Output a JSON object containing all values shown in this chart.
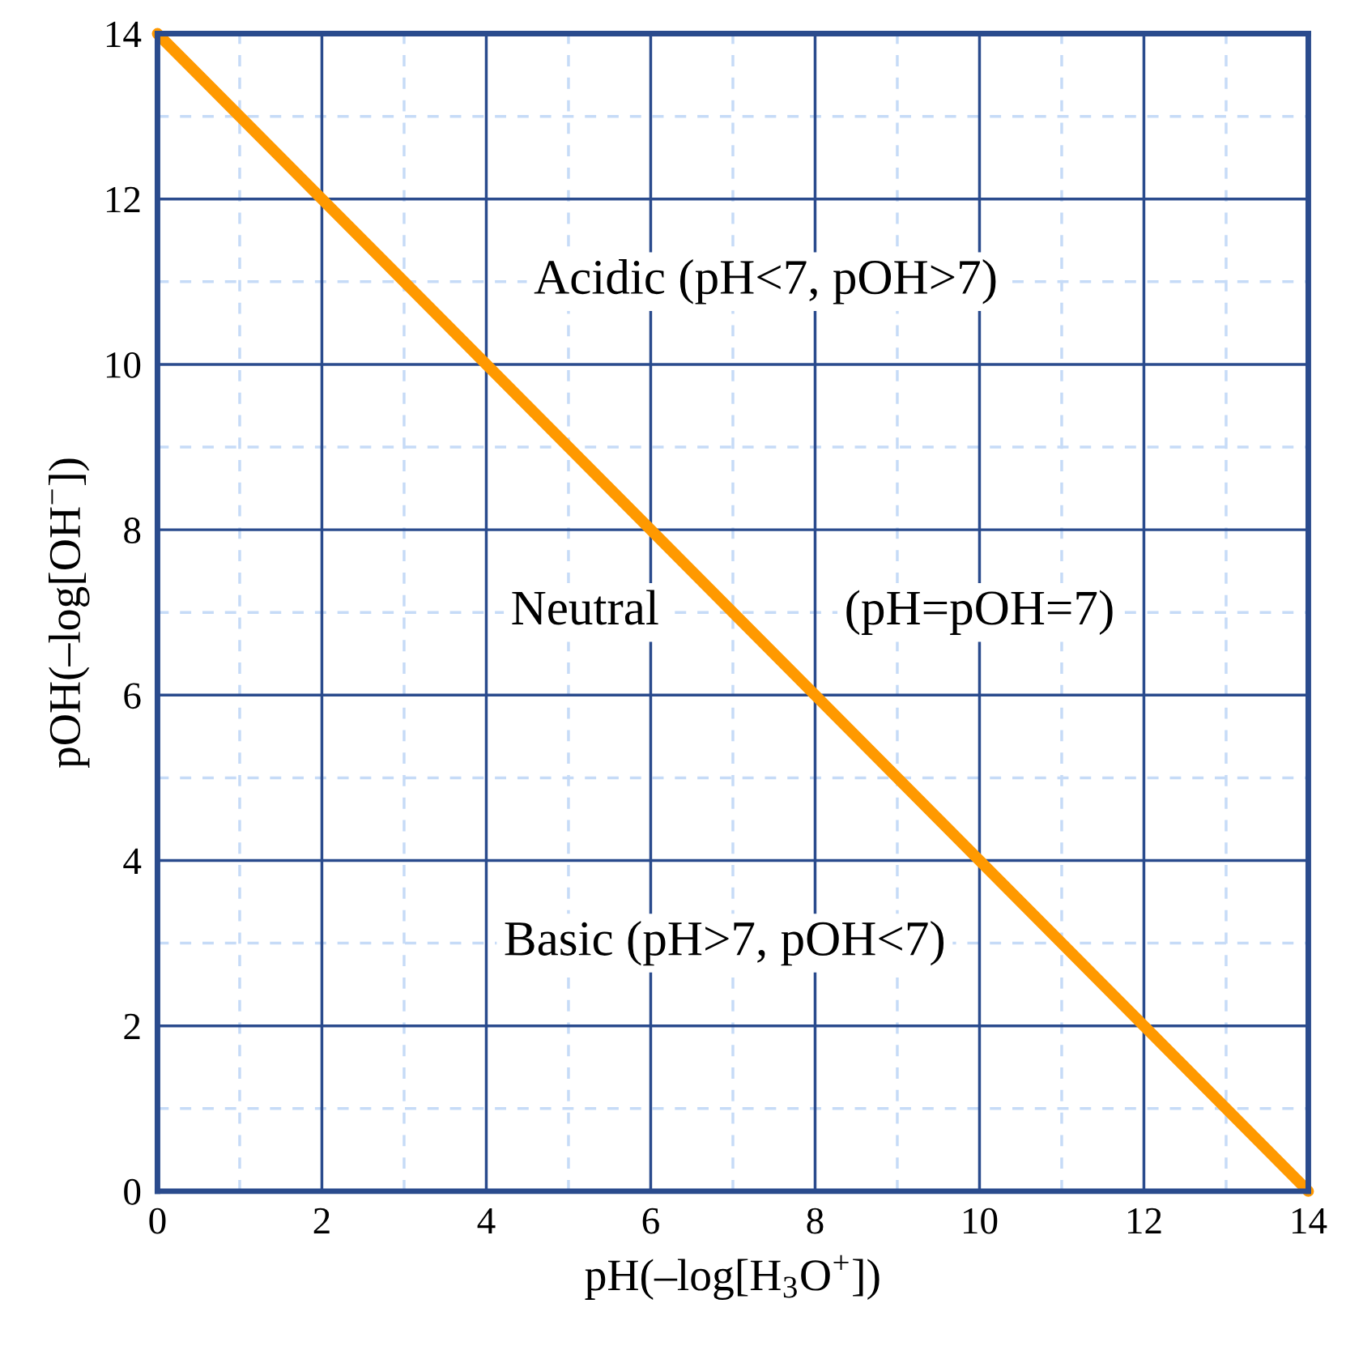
{
  "chart_data": {
    "type": "line",
    "xlabel": "pH(–log[H$_{3}$O$^{+}$])",
    "ylabel": "pOH(–log[OH$^{−}$])",
    "x": [
      0,
      14
    ],
    "series": [
      {
        "color": "#ff9900",
        "values": [
          14,
          0
        ]
      }
    ],
    "xlim": [
      0,
      14
    ],
    "ylim": [
      0,
      14
    ],
    "xticks": [
      0,
      {
        "value": 1,
        "label": null
      },
      2,
      {
        "value": 3,
        "label": null
      },
      4,
      {
        "value": 5,
        "label": null
      },
      6,
      {
        "value": 7,
        "label": null
      },
      8,
      {
        "value": 9,
        "label": null
      },
      10,
      {
        "value": 11,
        "label": null
      },
      12,
      {
        "value": 13,
        "label": null
      },
      14
    ],
    "yticks": [
      0,
      {
        "value": 1,
        "label": null
      },
      2,
      {
        "value": 3,
        "label": null
      },
      4,
      {
        "value": 5,
        "label": null
      },
      6,
      {
        "value": 7,
        "label": null
      },
      8,
      {
        "value": 9,
        "label": null
      },
      10,
      {
        "value": 11,
        "label": null
      },
      12,
      {
        "value": 13,
        "label": null
      },
      14
    ],
    "grid": true,
    "line_style": "solid",
    "annotations": [
      "Acidic (pH<7, pOH>7)",
      "Neutral",
      "(pH=pOH=7)",
      "Basic (pH>7, pOH<7)"
    ]
  }
}
